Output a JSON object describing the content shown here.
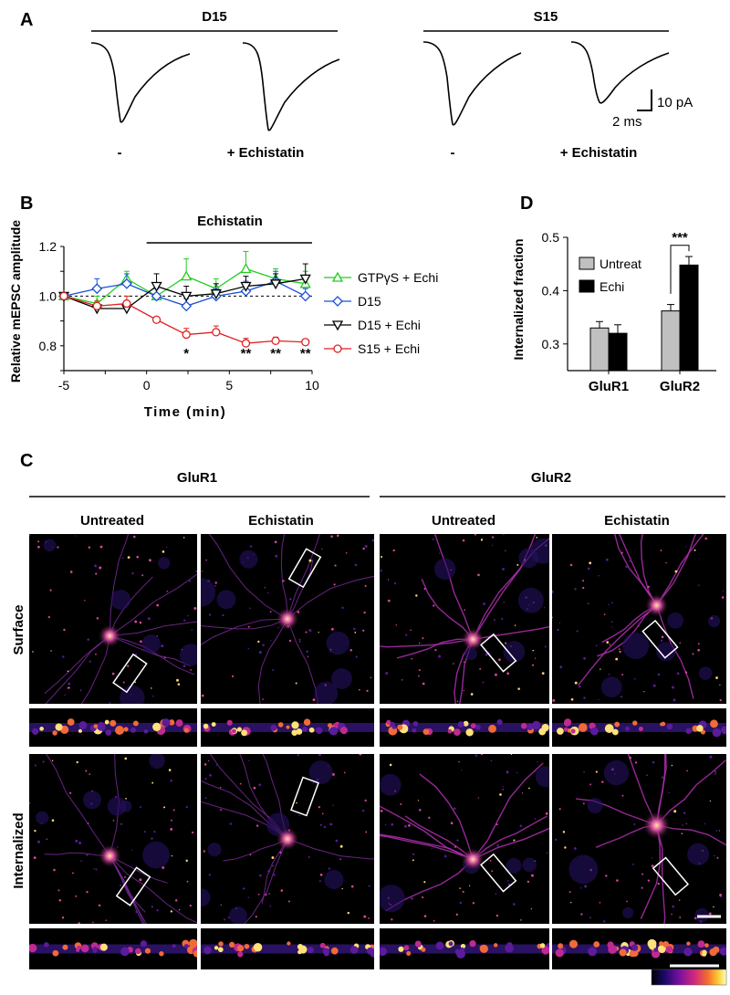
{
  "panel_a": {
    "letter": "A",
    "groups": [
      {
        "name": "D15",
        "conditions": [
          "-",
          "+ Echistatin"
        ]
      },
      {
        "name": "S15",
        "conditions": [
          "-",
          "+ Echistatin"
        ]
      }
    ],
    "scalebar": {
      "y_label": "10 pA",
      "x_label": "2 ms"
    },
    "trace_peaks": [
      {
        "group": "D15",
        "condition": "-",
        "peak_pA": -26
      },
      {
        "group": "D15",
        "condition": "+ Echistatin",
        "peak_pA": -27
      },
      {
        "group": "S15",
        "condition": "-",
        "peak_pA": -26
      },
      {
        "group": "S15",
        "condition": "+ Echistatin",
        "peak_pA": -19
      }
    ]
  },
  "panel_b": {
    "letter": "B",
    "bar_label": "Echistatin",
    "chart_data": {
      "type": "line",
      "xlabel": "Time (min)",
      "ylabel": "Relative mEPSC amplitude",
      "xlim": [
        -5,
        10
      ],
      "ylim": [
        0.7,
        1.2
      ],
      "xticks": [
        "-5",
        "0",
        "5",
        "10"
      ],
      "yticks": [
        "0.8",
        "1.0",
        "1.2"
      ],
      "reference_line": 1.0,
      "treatment_start": 0,
      "legend_position": "right",
      "series": [
        {
          "name": "GTPγS + Echi",
          "color": "#22cc22",
          "marker": "triangle-up",
          "x": [
            -5,
            -3,
            -1.2,
            0.6,
            2.4,
            4.2,
            6,
            7.8,
            9.6
          ],
          "y": [
            1.0,
            0.97,
            1.07,
            1.0,
            1.08,
            1.03,
            1.11,
            1.07,
            1.05
          ],
          "err": [
            0.01,
            0.03,
            0.03,
            0.04,
            0.07,
            0.04,
            0.07,
            0.04,
            0.05
          ]
        },
        {
          "name": "D15",
          "color": "#1a4fd6",
          "marker": "diamond",
          "x": [
            -5,
            -3,
            -1.2,
            0.6,
            2.4,
            4.2,
            6,
            7.8,
            9.6
          ],
          "y": [
            1.0,
            1.03,
            1.05,
            1.0,
            0.96,
            1.0,
            1.02,
            1.06,
            1.0
          ],
          "err": [
            0.01,
            0.04,
            0.04,
            0.03,
            0.03,
            0.03,
            0.04,
            0.04,
            0.03
          ]
        },
        {
          "name": "D15 + Echi",
          "color": "#000000",
          "marker": "triangle-down",
          "x": [
            -5,
            -3,
            -1.2,
            0.6,
            2.4,
            4.2,
            6,
            7.8,
            9.6
          ],
          "y": [
            1.0,
            0.95,
            0.95,
            1.04,
            1.0,
            1.01,
            1.04,
            1.05,
            1.07
          ],
          "err": [
            0.01,
            0.02,
            0.03,
            0.05,
            0.04,
            0.04,
            0.04,
            0.04,
            0.06
          ]
        },
        {
          "name": "S15 + Echi",
          "color": "#e02020",
          "marker": "circle",
          "x": [
            -5,
            -3,
            -1.2,
            0.6,
            2.4,
            4.2,
            6,
            7.8,
            9.6
          ],
          "y": [
            1.0,
            0.96,
            0.97,
            0.905,
            0.845,
            0.855,
            0.81,
            0.82,
            0.815
          ],
          "err": [
            0.01,
            0.02,
            0.03,
            0.01,
            0.025,
            0.025,
            0.02,
            0.015,
            0.01
          ]
        }
      ],
      "annotations": [
        {
          "x": 2.4,
          "y": 0.78,
          "text": "*"
        },
        {
          "x": 6,
          "y": 0.78,
          "text": "**"
        },
        {
          "x": 7.8,
          "y": 0.78,
          "text": "**"
        },
        {
          "x": 9.6,
          "y": 0.78,
          "text": "**"
        }
      ]
    }
  },
  "panel_d": {
    "letter": "D",
    "chart_data": {
      "type": "bar",
      "ylabel": "Internalized fraction",
      "categories": [
        "GluR1",
        "GluR2"
      ],
      "ylim": [
        0.25,
        0.5
      ],
      "yticks": [
        "0.3",
        "0.4",
        "0.5"
      ],
      "legend_position": "top-left",
      "series": [
        {
          "name": "Untreat",
          "color": "#c0c0c0",
          "values": [
            0.33,
            0.362
          ],
          "err": [
            0.012,
            0.012
          ]
        },
        {
          "name": "Echi",
          "color": "#000000",
          "values": [
            0.32,
            0.448
          ],
          "err": [
            0.016,
            0.016
          ]
        }
      ],
      "significance": {
        "category": "GluR2",
        "text": "***"
      }
    }
  },
  "panel_c": {
    "letter": "C",
    "groups": [
      {
        "name": "GluR1",
        "columns": [
          "Untreated",
          "Echistatin"
        ]
      },
      {
        "name": "GluR2",
        "columns": [
          "Untreated",
          "Echistatin"
        ]
      }
    ],
    "rows": [
      "Surface",
      "Internalized"
    ],
    "colormap": [
      "#000000",
      "#1b0a6b",
      "#7d10a0",
      "#d22a7a",
      "#f36d2d",
      "#fcd03a",
      "#ffffc8"
    ]
  }
}
